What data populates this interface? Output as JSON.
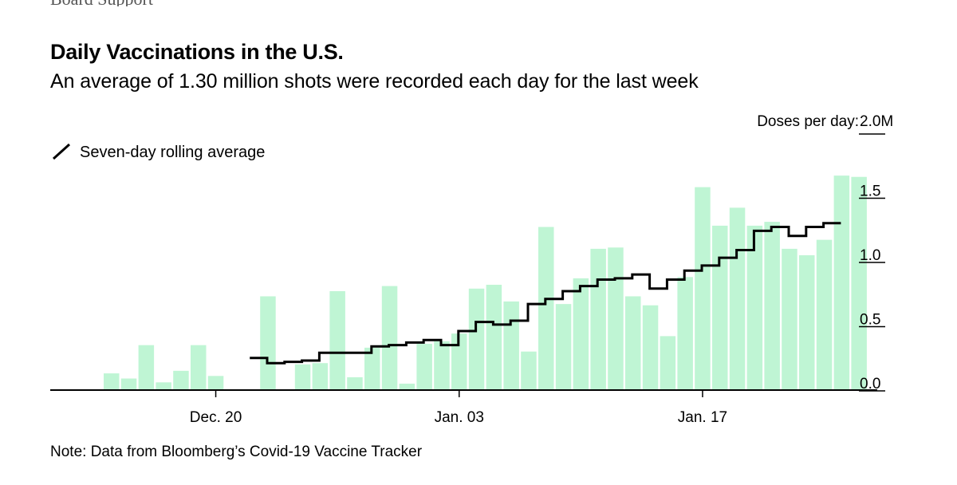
{
  "header": {
    "clipped_text": "Board Support",
    "title": "Daily Vaccinations in the U.S.",
    "subtitle": "An average of 1.30 million shots were recorded each day for the last week"
  },
  "footnote": "Note: Data from Bloomberg’s Covid-19 Vaccine Tracker",
  "colors": {
    "bar": "#bff5d4",
    "line": "#000000",
    "axis": "#000000"
  },
  "chart_data": {
    "type": "bar",
    "title": "Daily Vaccinations in the U.S.",
    "ylabel": "Doses per day",
    "y_axis_caption": "Doses per day: ",
    "y_axis_top_label": "2.0M",
    "ylim": [
      0,
      1.8
    ],
    "y_ticks": [
      {
        "value": 0.0,
        "label": "0.0"
      },
      {
        "value": 0.5,
        "label": "0.5"
      },
      {
        "value": 1.0,
        "label": "1.0"
      },
      {
        "value": 1.5,
        "label": "1.5"
      }
    ],
    "x_ticks": [
      {
        "index": 6,
        "label": "Dec. 20"
      },
      {
        "index": 20,
        "label": "Jan. 03"
      },
      {
        "index": 34,
        "label": "Jan. 17"
      }
    ],
    "legend": {
      "label": "Seven-day rolling average",
      "position": "top-left"
    },
    "series": [
      {
        "name": "Daily doses (millions)",
        "kind": "bar",
        "values": [
          0.13,
          0.09,
          0.35,
          0.06,
          0.15,
          0.35,
          0.11,
          0,
          0,
          0.73,
          0,
          0.2,
          0.21,
          0.77,
          0.1,
          0.33,
          0.81,
          0.05,
          0.36,
          0.38,
          0.44,
          0.79,
          0.82,
          0.69,
          0.3,
          1.27,
          0.67,
          0.87,
          1.1,
          1.11,
          0.73,
          0.66,
          0.42,
          0.88,
          1.58,
          1.28,
          1.42,
          1.28,
          1.31,
          1.1,
          1.05,
          1.17,
          1.67,
          1.66
        ],
        "labels_start": 0
      },
      {
        "name": "Seven-day rolling average",
        "kind": "step-line",
        "start_index": 9,
        "values": [
          0.25,
          0.21,
          0.22,
          0.23,
          0.29,
          0.29,
          0.29,
          0.34,
          0.35,
          0.37,
          0.39,
          0.35,
          0.46,
          0.53,
          0.51,
          0.54,
          0.67,
          0.71,
          0.77,
          0.81,
          0.86,
          0.87,
          0.9,
          0.79,
          0.86,
          0.93,
          0.97,
          1.03,
          1.09,
          1.24,
          1.27,
          1.2,
          1.27,
          1.3
        ]
      }
    ]
  }
}
